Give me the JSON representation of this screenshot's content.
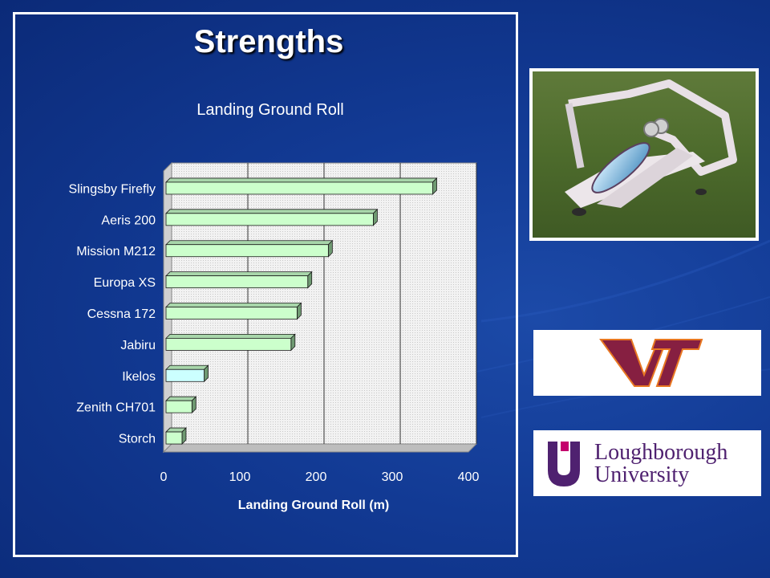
{
  "slide": {
    "title": "Strengths"
  },
  "chart_data": {
    "type": "bar",
    "orientation": "horizontal",
    "title": "Landing Ground Roll",
    "xlabel": "Landing Ground Roll (m)",
    "ylabel": "",
    "xlim": [
      0,
      400
    ],
    "ticks": [
      0,
      100,
      200,
      300,
      400
    ],
    "categories": [
      "Slingsby Firefly",
      "Aeris 200",
      "Mission M212",
      "Europa XS",
      "Cessna 172",
      "Jabiru",
      "Ikelos",
      "Zenith CH701",
      "Storch"
    ],
    "values": [
      350,
      272,
      213,
      186,
      172,
      164,
      50,
      34,
      21
    ],
    "highlight_category": "Ikelos",
    "colors": {
      "bar": "#ccffcc",
      "highlight_bar": "#ccffff",
      "bar_side": "#6f9a72",
      "bar_top": "#a8d6aa",
      "plot_back": "#e8e8e8",
      "text": "#ffffff"
    },
    "grid": true,
    "style": "3d"
  },
  "logos": {
    "vt_text": "VT",
    "lboro_line1": "Loughborough",
    "lboro_line2": "University",
    "vt_color": "#861f41",
    "vt_outline": "#e87722",
    "lboro_color": "#4f2170",
    "lboro_accent": "#c4006c"
  },
  "photo": {
    "icon": "concept-aircraft-render"
  }
}
